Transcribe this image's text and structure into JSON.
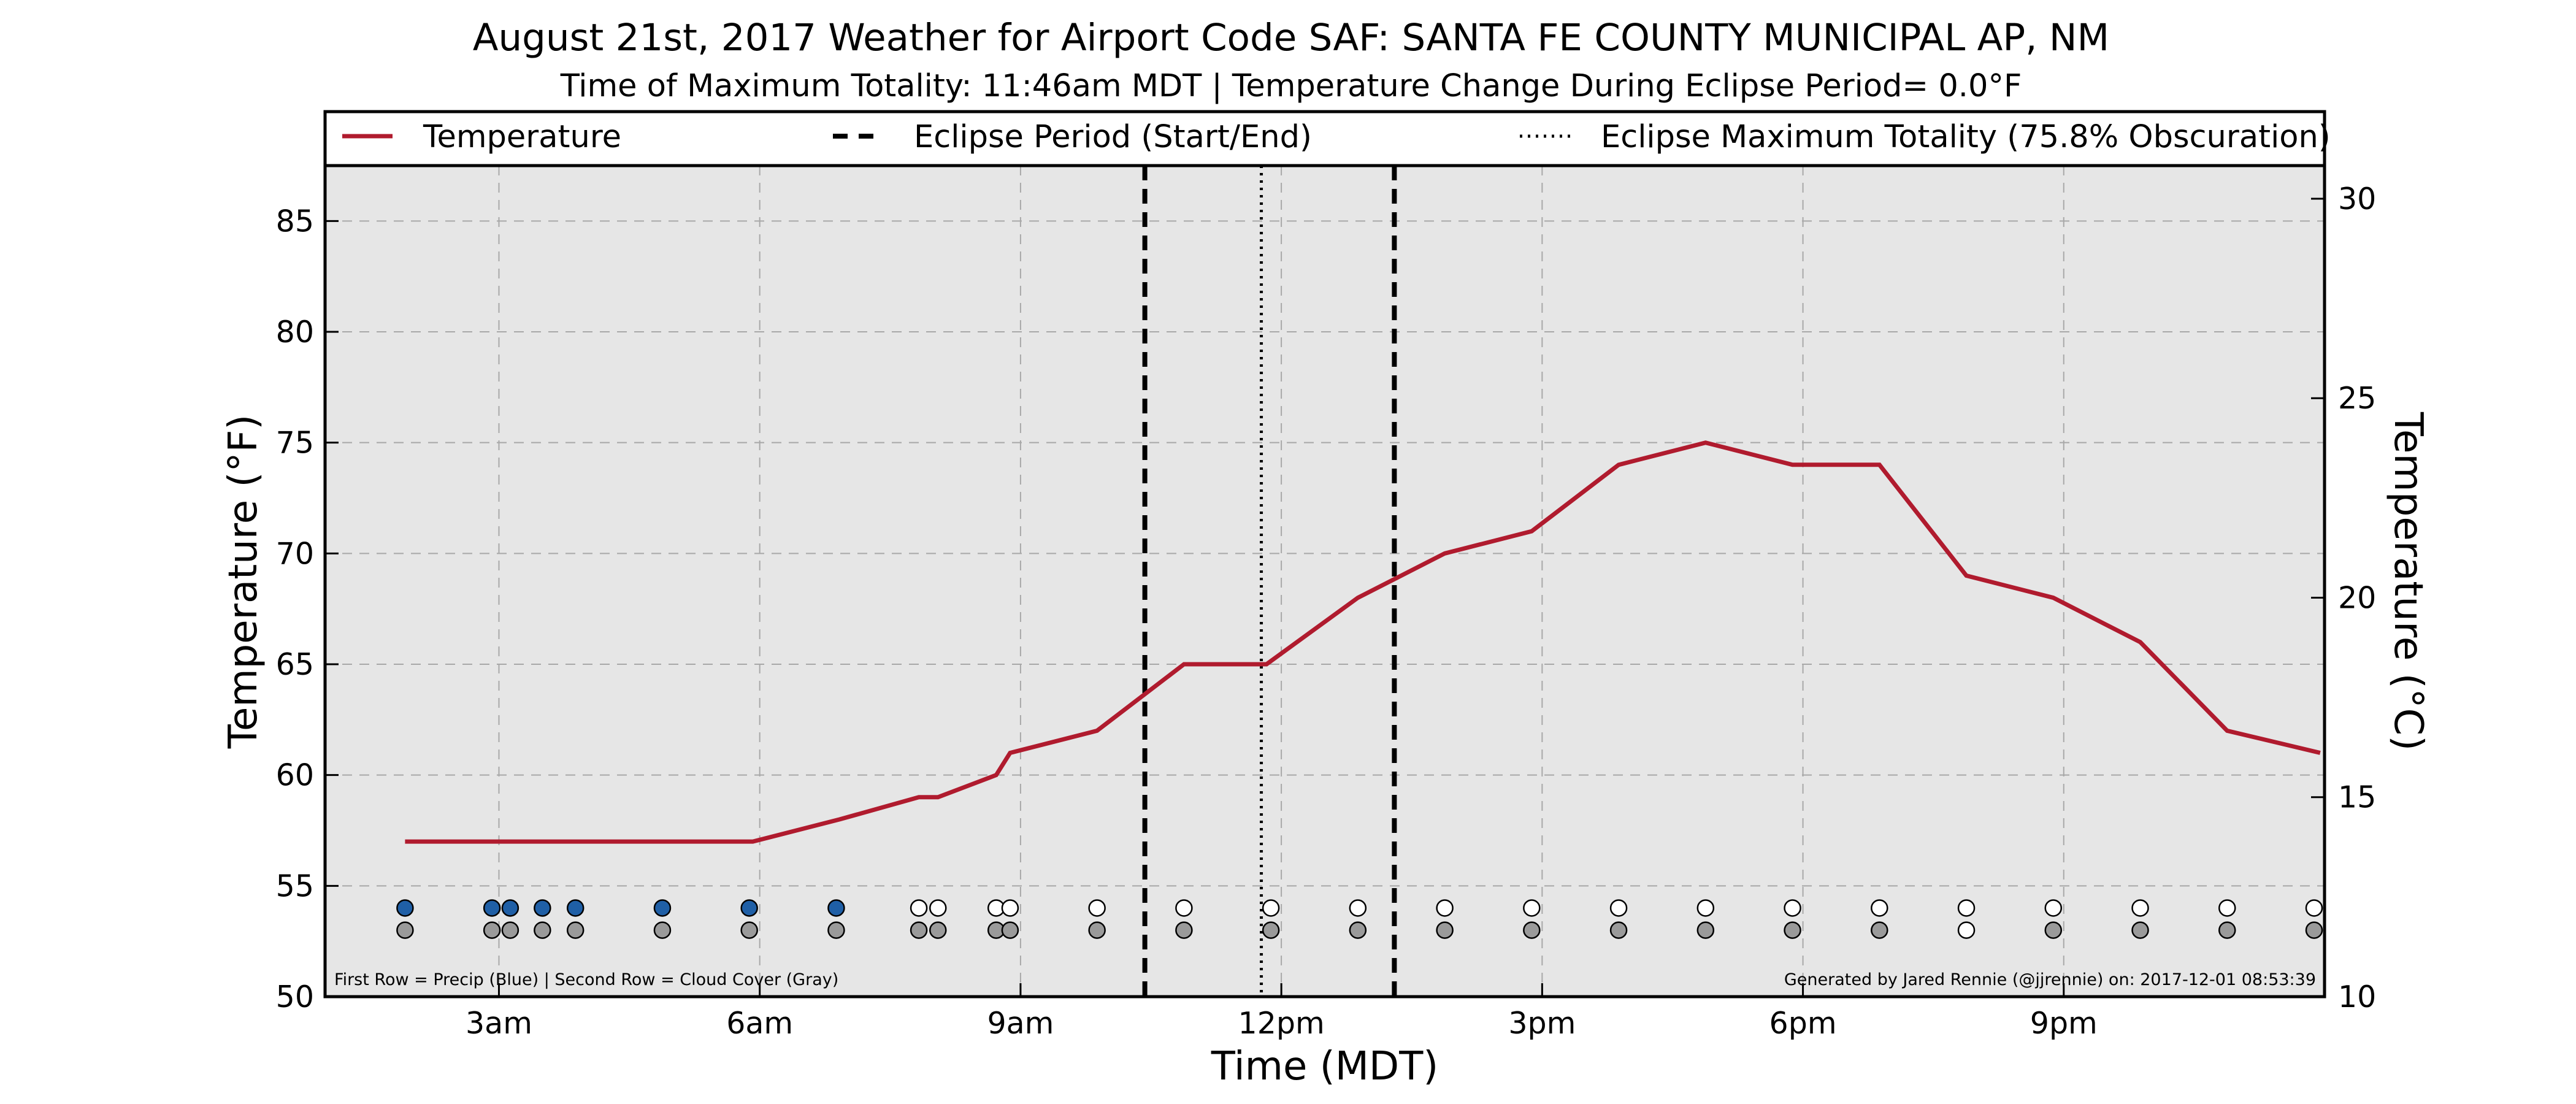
{
  "chart_data": {
    "type": "line",
    "title": "August 21st, 2017 Weather for Airport Code SAF: SANTA FE COUNTY MUNICIPAL AP, NM",
    "subtitle": "Time of Maximum Totality: 11:46am MDT | Temperature Change During Eclipse Period= 0.0°F",
    "xlabel": "Time (MDT)",
    "ylabel": "Temperature (°F)",
    "ylabel_right": "Temperature (°C)",
    "xlim": [
      1.0,
      24.0
    ],
    "ylim": [
      50,
      87.5
    ],
    "ylim_right": [
      10,
      30.83
    ],
    "x_ticks": [
      {
        "value": 3,
        "label": "3am"
      },
      {
        "value": 6,
        "label": "6am"
      },
      {
        "value": 9,
        "label": "9am"
      },
      {
        "value": 12,
        "label": "12pm"
      },
      {
        "value": 15,
        "label": "3pm"
      },
      {
        "value": 18,
        "label": "6pm"
      },
      {
        "value": 21,
        "label": "9pm"
      }
    ],
    "y_ticks": [
      50,
      55,
      60,
      65,
      70,
      75,
      80,
      85
    ],
    "y_ticks_right": [
      10,
      15,
      20,
      25,
      30
    ],
    "grid": true,
    "legend_position": "top",
    "legend": [
      {
        "label": "Temperature",
        "style": "solid",
        "color": "#b01b2e"
      },
      {
        "label": "Eclipse Period (Start/End)",
        "style": "dashed",
        "color": "#000000"
      },
      {
        "label": "Eclipse Maximum Totality (75.8% Obscuration)",
        "style": "dotted",
        "color": "#000000"
      }
    ],
    "series": [
      {
        "name": "Temperature",
        "color": "#b01b2e",
        "x": [
          1.92,
          5.92,
          6.92,
          7.83,
          8.05,
          8.72,
          8.88,
          9.88,
          10.88,
          11.25,
          11.42,
          11.83,
          12.88,
          13.88,
          14.88,
          15.88,
          16.88,
          17.88,
          18.88,
          19.88,
          20.88,
          21.88,
          22.88,
          23.95
        ],
        "y": [
          57,
          57,
          58,
          59,
          59,
          60,
          61,
          62,
          65,
          65,
          65,
          65,
          68,
          70,
          71,
          74,
          75,
          74,
          74,
          69,
          68,
          66,
          62,
          61
        ]
      }
    ],
    "eclipse": {
      "start": 10.43,
      "end": 13.3,
      "max_totality": 11.77,
      "max_totality_label": "11:46am MDT",
      "obscuration": "75.8%",
      "temperature_change": "0.0°F"
    },
    "observations": {
      "precip_row_y": 54,
      "cloud_row_y": 53,
      "x": [
        1.92,
        2.92,
        3.13,
        3.5,
        3.88,
        4.88,
        5.88,
        6.88,
        7.83,
        8.05,
        8.72,
        8.88,
        9.88,
        10.88,
        11.88,
        12.88,
        13.88,
        14.88,
        15.88,
        16.88,
        17.88,
        18.88,
        19.88,
        20.88,
        21.88,
        22.88,
        23.88
      ],
      "precip": [
        "blue",
        "blue",
        "blue",
        "blue",
        "blue",
        "blue",
        "blue",
        "blue",
        "white",
        "white",
        "white",
        "white",
        "white",
        "white",
        "white",
        "white",
        "white",
        "white",
        "white",
        "white",
        "white",
        "white",
        "white",
        "white",
        "white",
        "white",
        "white"
      ],
      "cloud": [
        "gray",
        "gray",
        "gray",
        "gray",
        "gray",
        "gray",
        "gray",
        "gray",
        "gray",
        "gray",
        "gray",
        "gray",
        "gray",
        "gray",
        "gray",
        "gray",
        "gray",
        "gray",
        "gray",
        "gray",
        "gray",
        "gray",
        "white",
        "gray",
        "gray",
        "gray",
        "gray"
      ]
    },
    "marker_colors": {
      "blue": "#1f5fa6",
      "gray": "#9a9a9a",
      "white": "#ffffff"
    },
    "plot_background": "#e6e6e6"
  },
  "footer": {
    "left_note": "First Row = Precip (Blue) | Second Row = Cloud Cover (Gray)",
    "right_note": "Generated by Jared Rennie (@jjrennie) on: 2017-12-01 08:53:39"
  }
}
